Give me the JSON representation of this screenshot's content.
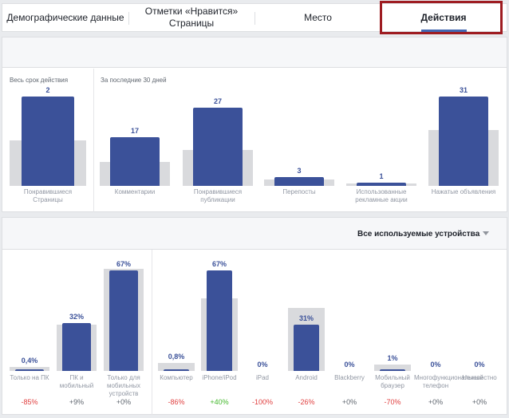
{
  "tabs": [
    {
      "label": "Демографические данные"
    },
    {
      "label": "Отметки «Нравится» Страницы"
    },
    {
      "label": "Место"
    },
    {
      "label": "Действия"
    }
  ],
  "actions_panel": {
    "lifetime_label": "Весь срок действия",
    "last30_label": "За последние 30 дней"
  },
  "devices_panel": {
    "dropdown_label": "Все используемые устройства"
  },
  "chart_data": [
    {
      "type": "bar",
      "title": "",
      "categories": [
        "Понравившиеся Страницы"
      ],
      "series": [
        {
          "values": [
            2
          ]
        }
      ],
      "value_labels": [
        "2"
      ]
    },
    {
      "type": "bar",
      "title": "",
      "categories": [
        "Комментарии",
        "Понравившиеся публикации",
        "Перепосты",
        "Использованные рекламные акции",
        "Нажатые объявления"
      ],
      "series": [
        {
          "values": [
            17,
            27,
            3,
            1,
            31
          ]
        }
      ],
      "value_labels": [
        "17",
        "27",
        "3",
        "1",
        "31"
      ]
    },
    {
      "type": "bar",
      "title": "",
      "categories": [
        "Только на ПК",
        "ПК и мобильный",
        "Только для мобильных устройств"
      ],
      "series": [
        {
          "values": [
            0.4,
            32,
            67
          ]
        }
      ],
      "value_labels": [
        "0,4%",
        "32%",
        "67%"
      ],
      "changes": [
        "-85%",
        "+9%",
        "+0%"
      ]
    },
    {
      "type": "bar",
      "title": "",
      "categories": [
        "Компьютер",
        "iPhone/iPod",
        "iPad",
        "Android",
        "Blackberry",
        "Мобильный браузер",
        "Многофункциональный телефон",
        "Неизвестно"
      ],
      "series": [
        {
          "values": [
            0.8,
            67,
            0,
            31,
            0,
            1,
            0,
            0
          ]
        }
      ],
      "value_labels": [
        "0,8%",
        "67%",
        "0%",
        "31%",
        "0%",
        "1%",
        "0%",
        "0%"
      ],
      "changes": [
        "-86%",
        "+40%",
        "-100%",
        "-26%",
        "+0%",
        "-70%",
        "+0%",
        "+0%"
      ]
    }
  ],
  "category_display": {
    "actions": [
      "Понравившиеся Страницы",
      "Комментарии",
      "Понравившиеся публикации",
      "Перепосты",
      "Использованные рекламные акции",
      "Нажатые объявления"
    ],
    "devices": [
      "Только на ПК",
      "ПК и мобильный",
      "Только для мобильных устройств",
      "Компьютер",
      "iPhone/iPod",
      "iPad",
      "Android",
      "Blackberry",
      "Мобильный браузер",
      "Многофункциональный телефон",
      "Неизвестно"
    ]
  },
  "colors": {
    "bar": "#3b5199",
    "ghost": "#d9dadd",
    "negative": "#e04040",
    "positive": "#42b72a",
    "highlight": "#9e1c21"
  }
}
